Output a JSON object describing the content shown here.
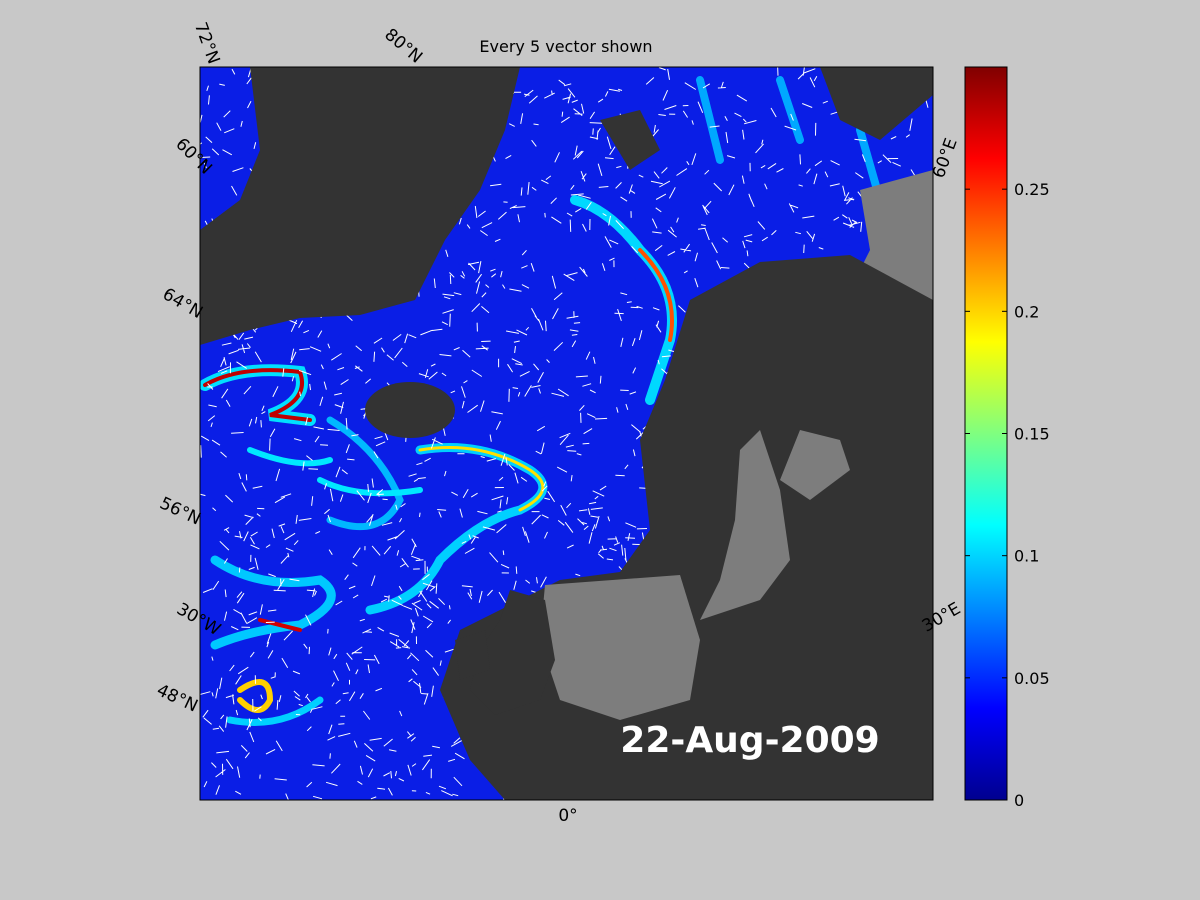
{
  "map": {
    "title": "Every 5 vector shown",
    "date": "22-Aug-2009",
    "grid_labels": [
      "72°N",
      "80°N",
      "60°E",
      "60°N",
      "64°N",
      "56°N",
      "30°W",
      "48°N",
      "30°E",
      "0°"
    ],
    "colorbar": {
      "lim": [
        0,
        0.3
      ],
      "ticks": [
        0,
        0.05,
        0.1,
        0.15,
        0.2,
        0.25
      ]
    }
  }
}
